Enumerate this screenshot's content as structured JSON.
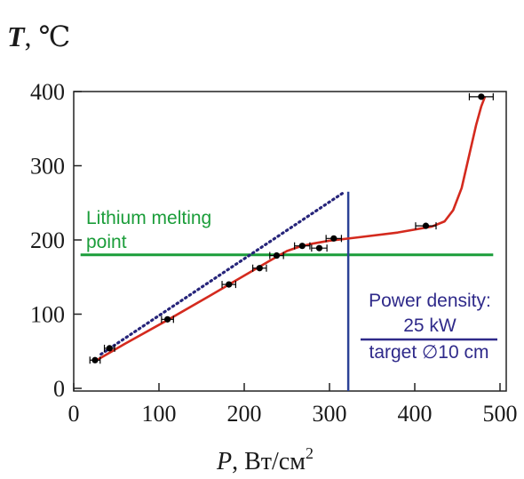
{
  "chart_data": {
    "type": "scatter",
    "ylabel_symbol": "T",
    "ylabel_unit": ", ℃",
    "xlabel_symbol": "P",
    "xlabel_unit": ", Вт/см",
    "xlabel_unit_exp": "2",
    "xlim": [
      0,
      500
    ],
    "ylim": [
      0,
      400
    ],
    "xticks": [
      0,
      100,
      200,
      300,
      400,
      500
    ],
    "yticks": [
      0,
      100,
      200,
      300,
      400
    ],
    "grid": false,
    "series": [
      {
        "kind": "points_with_xerr",
        "color": "#000000",
        "points": [
          {
            "x": 25,
            "y": 38,
            "xerr": 6,
            "yerr": 3
          },
          {
            "x": 42,
            "y": 54,
            "xerr": 6,
            "yerr": 3
          },
          {
            "x": 110,
            "y": 93,
            "xerr": 7,
            "yerr": 3
          },
          {
            "x": 182,
            "y": 140,
            "xerr": 8,
            "yerr": 3
          },
          {
            "x": 218,
            "y": 162,
            "xerr": 8,
            "yerr": 3
          },
          {
            "x": 238,
            "y": 179,
            "xerr": 8,
            "yerr": 3
          },
          {
            "x": 268,
            "y": 192,
            "xerr": 9,
            "yerr": 3
          },
          {
            "x": 288,
            "y": 189,
            "xerr": 9,
            "yerr": 3
          },
          {
            "x": 305,
            "y": 202,
            "xerr": 9,
            "yerr": 3
          },
          {
            "x": 413,
            "y": 219,
            "xerr": 12,
            "yerr": 3
          },
          {
            "x": 478,
            "y": 393,
            "xerr": 14,
            "yerr": 3
          }
        ]
      },
      {
        "kind": "fit_curve",
        "color": "#d42a1e",
        "x": [
          27,
          60,
          110,
          160,
          200,
          230,
          250,
          265,
          280,
          300,
          330,
          380,
          420,
          435,
          445,
          455,
          465,
          472,
          478,
          482
        ],
        "y": [
          38,
          60,
          92,
          125,
          152,
          172,
          185,
          191,
          195,
          199,
          203,
          210,
          218,
          225,
          240,
          270,
          320,
          355,
          380,
          392
        ]
      },
      {
        "kind": "dotted_trend",
        "color": "#26247a",
        "x": [
          32,
          318
        ],
        "y": [
          46,
          265
        ]
      }
    ],
    "reference_lines": [
      {
        "orientation": "horizontal",
        "y": 180,
        "x_from": 8,
        "x_to": 492,
        "color": "#1b9d3a",
        "label_lines": [
          "Lithium melting",
          "point"
        ]
      },
      {
        "orientation": "vertical",
        "x": 322,
        "y_from": 0,
        "y_to": 265,
        "color": "#2b4196"
      }
    ],
    "annotations": {
      "power_title": "Power density:",
      "power_value": "25 kW",
      "power_target": "target ∅10 cm",
      "color": "#2f2a8a"
    }
  }
}
